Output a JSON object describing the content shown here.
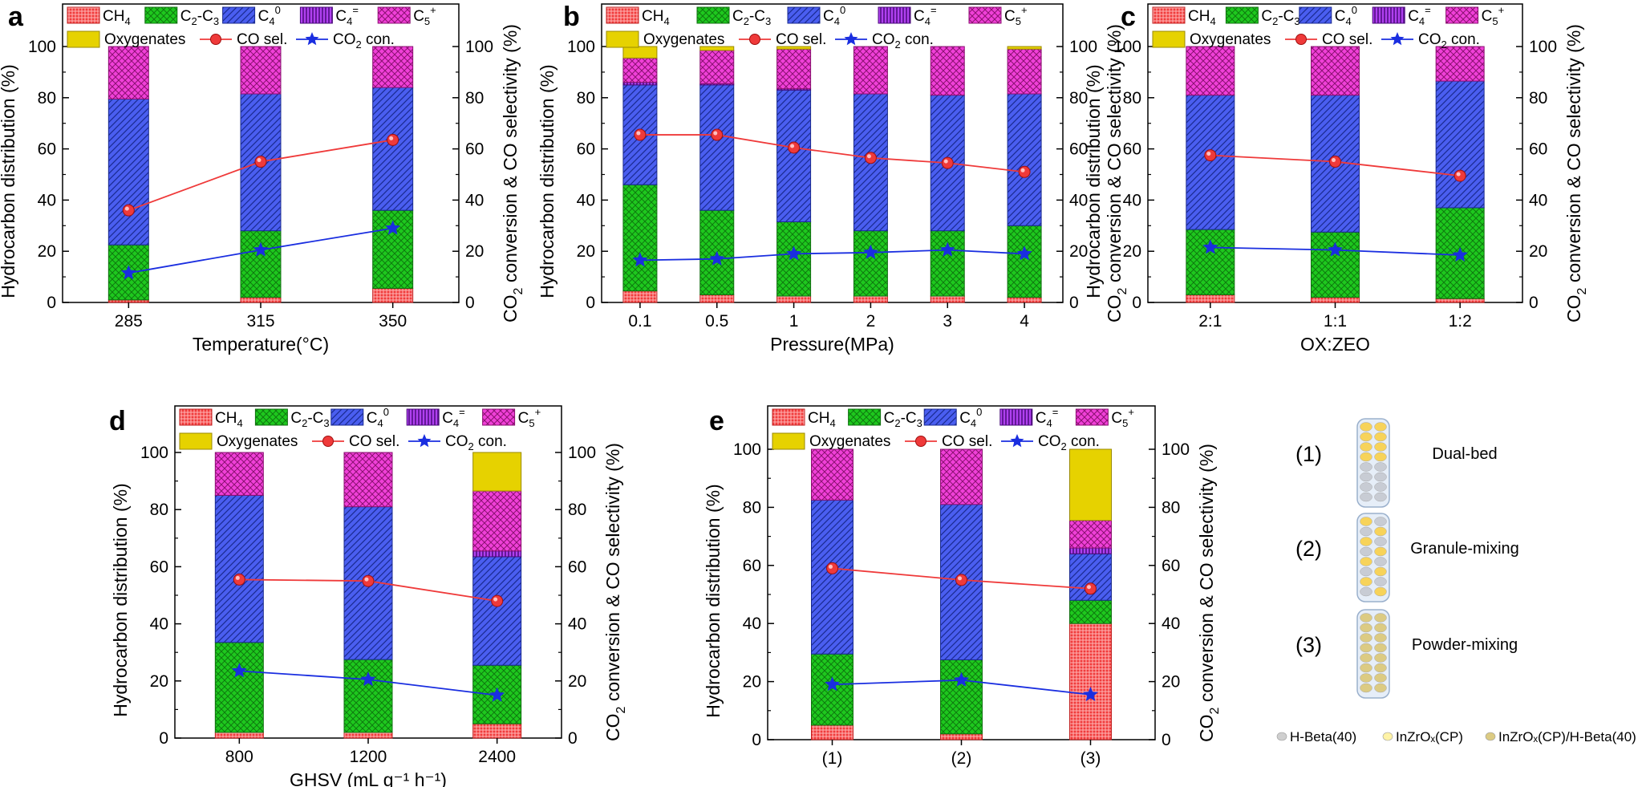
{
  "colors": {
    "CH4": "#f03c3c",
    "C2C3": "#1ec81e",
    "C40": "#4a5ef0",
    "C4ene": "#b040f0",
    "C5": "#f040d8",
    "Oxy": "#e6d200",
    "CO_line": "#ef3a3a",
    "CO2_line": "#1a2ee0"
  },
  "legend": {
    "CH4": [
      "CH",
      "4",
      ""
    ],
    "C2C3": [
      "C",
      "2",
      "-C",
      "3",
      ""
    ],
    "C40": [
      "C",
      "4",
      "0"
    ],
    "C4ene": [
      "C",
      "4",
      "="
    ],
    "C5": [
      "C",
      "5",
      "+"
    ],
    "Oxy": "Oxygenates",
    "CO_sel": "CO sel.",
    "CO2_con": [
      "CO",
      "2",
      " con."
    ]
  },
  "axis_labels": {
    "left": "Hydrocarbon distribution (%)",
    "right_parts": [
      "CO",
      "2",
      " conversion & CO selectivity (%)"
    ]
  },
  "chart_data": [
    {
      "type": "bar",
      "panel": "a",
      "categories": [
        "285",
        "315",
        "350"
      ],
      "xlabel": "Temperature(°C)",
      "ylim": [
        0,
        100
      ],
      "yticks": [
        0,
        20,
        40,
        60,
        80,
        100
      ],
      "stack": {
        "CH4": [
          1,
          2,
          5.5
        ],
        "C2C3": [
          21.5,
          26,
          30.5
        ],
        "C40": [
          57,
          53.5,
          48
        ],
        "C4ene": [
          0,
          0,
          0
        ],
        "C5": [
          20.5,
          18.5,
          16
        ],
        "Oxy": [
          0,
          0,
          0
        ]
      },
      "co_sel": [
        36,
        55,
        63.5
      ],
      "co2_con": [
        11.5,
        20.5,
        29
      ]
    },
    {
      "type": "bar",
      "panel": "b",
      "categories": [
        "0.1",
        "0.5",
        "1",
        "2",
        "3",
        "4"
      ],
      "xlabel": "Pressure(MPa)",
      "ylim": [
        0,
        100
      ],
      "yticks": [
        0,
        20,
        40,
        60,
        80,
        100
      ],
      "stack": {
        "CH4": [
          4.5,
          3,
          2.5,
          2.5,
          2.5,
          2
        ],
        "C2C3": [
          41.5,
          33,
          29,
          25.5,
          25.5,
          28
        ],
        "C40": [
          39,
          49,
          51.5,
          53.5,
          53,
          51.5
        ],
        "C4ene": [
          1,
          0.5,
          0.5,
          0,
          0,
          0
        ],
        "C5": [
          9.5,
          13,
          15.5,
          18.5,
          19,
          17.5
        ],
        "Oxy": [
          4.5,
          1.5,
          1,
          0,
          0,
          1
        ]
      },
      "co_sel": [
        65.5,
        65.5,
        60.5,
        56.5,
        54.5,
        51
      ],
      "co2_con": [
        16.5,
        17,
        19,
        19.5,
        20.5,
        19
      ]
    },
    {
      "type": "bar",
      "panel": "c",
      "categories": [
        "2:1",
        "1:1",
        "1:2"
      ],
      "xlabel": "OX:ZEO",
      "ylim": [
        0,
        100
      ],
      "yticks": [
        0,
        20,
        40,
        60,
        80,
        100
      ],
      "stack": {
        "CH4": [
          3,
          2,
          1.5
        ],
        "C2C3": [
          25.5,
          25.5,
          35.5
        ],
        "C40": [
          52.5,
          53.5,
          49.5
        ],
        "C4ene": [
          0,
          0,
          0
        ],
        "C5": [
          19,
          19,
          13.5
        ],
        "Oxy": [
          0,
          0,
          0
        ]
      },
      "co_sel": [
        57.5,
        55,
        49.5
      ],
      "co2_con": [
        21.5,
        20.5,
        18.5
      ]
    },
    {
      "type": "bar",
      "panel": "d",
      "categories": [
        "800",
        "1200",
        "2400"
      ],
      "xlabel": "GHSV (mL g⁻¹ h⁻¹)",
      "ylim": [
        0,
        100
      ],
      "yticks": [
        0,
        20,
        40,
        60,
        80,
        100
      ],
      "stack": {
        "CH4": [
          2,
          2,
          5
        ],
        "C2C3": [
          31.5,
          25.5,
          20.5
        ],
        "C40": [
          51.5,
          53.5,
          38
        ],
        "C4ene": [
          0,
          0,
          2
        ],
        "C5": [
          15,
          19,
          21
        ],
        "Oxy": [
          0,
          0,
          13.5
        ]
      },
      "co_sel": [
        55.5,
        55,
        48
      ],
      "co2_con": [
        23.5,
        20.5,
        15
      ]
    },
    {
      "type": "bar",
      "panel": "e",
      "categories": [
        "(1)",
        "(2)",
        "(3)"
      ],
      "xlabel": "",
      "ylim": [
        0,
        100
      ],
      "yticks": [
        0,
        20,
        40,
        60,
        80,
        100
      ],
      "stack": {
        "CH4": [
          5,
          2,
          40
        ],
        "C2C3": [
          24.5,
          25.5,
          8
        ],
        "C40": [
          53,
          53.5,
          16
        ],
        "C4ene": [
          0,
          0,
          2
        ],
        "C5": [
          17.5,
          19,
          9.5
        ],
        "Oxy": [
          0,
          0,
          24.5
        ]
      },
      "co_sel": [
        59,
        55,
        52
      ],
      "co2_con": [
        19,
        20.5,
        15.5
      ]
    }
  ],
  "scheme": {
    "items": [
      {
        "num": "(1)",
        "label": "Dual-bed"
      },
      {
        "num": "(2)",
        "label": "Granule-mixing"
      },
      {
        "num": "(3)",
        "label": "Powder-mixing"
      }
    ],
    "legend": [
      {
        "text": "H-Beta(40)",
        "color": "#cfcfcf"
      },
      {
        "text": "InZrOₓ(CP)",
        "color": "#fff3a6"
      },
      {
        "text": "InZrOₓ(CP)/H-Beta(40)",
        "color": "#dccb83"
      }
    ]
  }
}
